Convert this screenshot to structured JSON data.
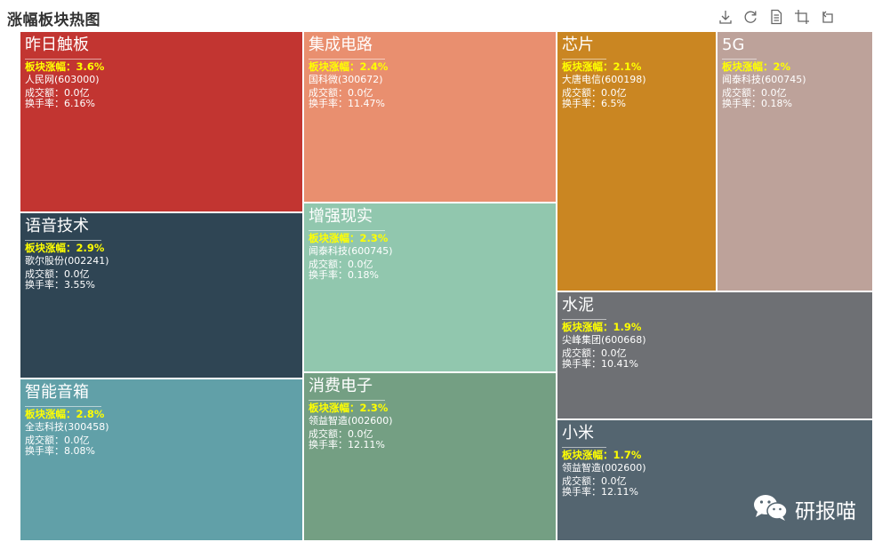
{
  "title": "涨幅板块热图",
  "toolbox": [
    {
      "name": "download-icon",
      "label": "save"
    },
    {
      "name": "refresh-icon",
      "label": "restore"
    },
    {
      "name": "data-view-icon",
      "label": "data view"
    },
    {
      "name": "zoom-icon",
      "label": "zoom"
    },
    {
      "name": "zoom-reset-icon",
      "label": "zoom reset"
    }
  ],
  "watermark": "研报喵",
  "chart_data": {
    "type": "treemap",
    "field_labels": {
      "pct": "板块涨幅：",
      "volume": "成交额：",
      "turnover": "换手率："
    },
    "items": [
      {
        "sector": "昨日触板",
        "pct": "3.6%",
        "stock": "人民网(603000)",
        "volume": "0.0亿",
        "turnover": "6.16%",
        "color": "#c23531"
      },
      {
        "sector": "语音技术",
        "pct": "2.9%",
        "stock": "歌尔股份(002241)",
        "volume": "0.0亿",
        "turnover": "3.55%",
        "color": "#2f4554"
      },
      {
        "sector": "智能音箱",
        "pct": "2.8%",
        "stock": "全志科技(300458)",
        "volume": "0.0亿",
        "turnover": "8.08%",
        "color": "#61a0a8"
      },
      {
        "sector": "集成电路",
        "pct": "2.4%",
        "stock": "国科微(300672)",
        "volume": "0.0亿",
        "turnover": "11.47%",
        "color": "#e98f6f"
      },
      {
        "sector": "增强现实",
        "pct": "2.3%",
        "stock": "闻泰科技(600745)",
        "volume": "0.0亿",
        "turnover": "0.18%",
        "color": "#91c7ae"
      },
      {
        "sector": "消费电子",
        "pct": "2.3%",
        "stock": "领益智造(002600)",
        "volume": "0.0亿",
        "turnover": "12.11%",
        "color": "#749f83"
      },
      {
        "sector": "芯片",
        "pct": "2.1%",
        "stock": "大唐电信(600198)",
        "volume": "0.0亿",
        "turnover": "6.5%",
        "color": "#ca8622"
      },
      {
        "sector": "5G",
        "pct": "2%",
        "stock": "闻泰科技(600745)",
        "volume": "0.0亿",
        "turnover": "0.18%",
        "color": "#bda29a"
      },
      {
        "sector": "水泥",
        "pct": "1.9%",
        "stock": "尖峰集团(600668)",
        "volume": "0.0亿",
        "turnover": "10.41%",
        "color": "#6e7074"
      },
      {
        "sector": "小米",
        "pct": "1.7%",
        "stock": "领益智造(002600)",
        "volume": "0.0亿",
        "turnover": "12.11%",
        "color": "#546570"
      }
    ]
  }
}
